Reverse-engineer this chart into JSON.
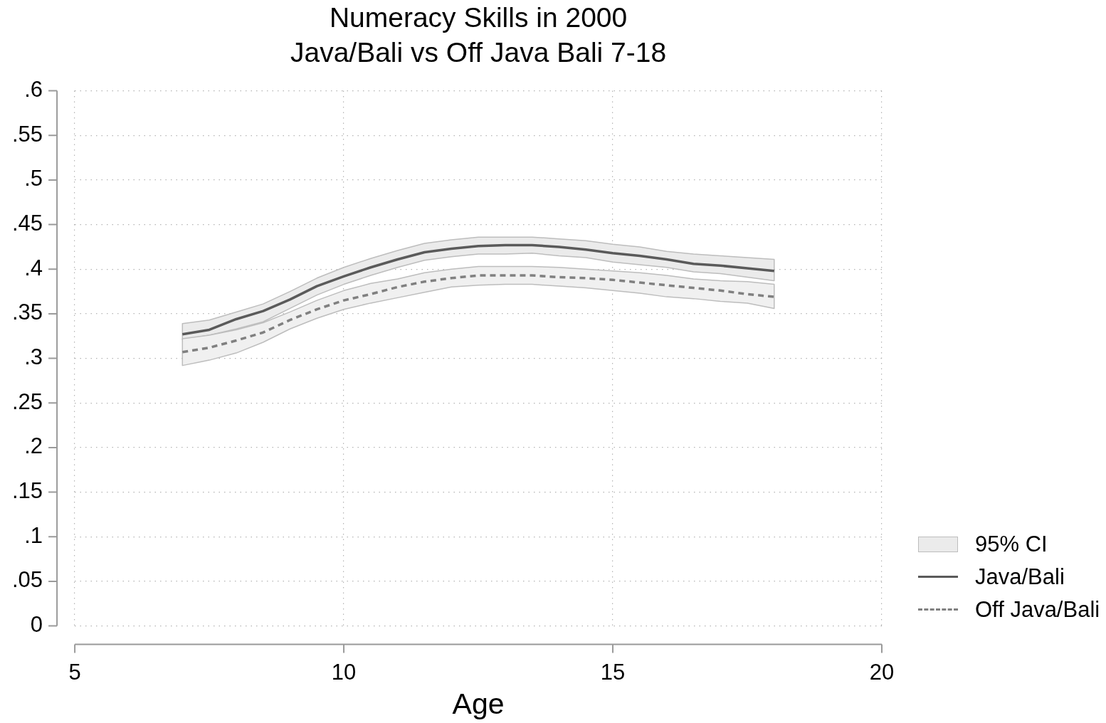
{
  "chart_data": {
    "type": "line",
    "title": "Numeracy Skills in 2000",
    "subtitle": "Java/Bali vs Off Java Bali 7-18",
    "xlabel": "Age",
    "annotations": [
      "95% CI"
    ],
    "x": [
      7,
      7.5,
      8,
      8.5,
      9,
      9.5,
      10,
      10.5,
      11,
      11.5,
      12,
      12.5,
      13,
      13.5,
      14,
      14.5,
      15,
      15.5,
      16,
      16.5,
      17,
      17.5,
      18
    ],
    "series": [
      {
        "name": "Java/Bali",
        "color": "#5a5a5a",
        "line_style": "solid",
        "values": [
          0.327,
          0.332,
          0.344,
          0.353,
          0.366,
          0.381,
          0.392,
          0.402,
          0.411,
          0.419,
          0.423,
          0.426,
          0.427,
          0.427,
          0.425,
          0.422,
          0.418,
          0.415,
          0.411,
          0.406,
          0.404,
          0.401,
          0.398
        ],
        "lower": [
          0.321,
          0.326,
          0.333,
          0.341,
          0.356,
          0.371,
          0.383,
          0.393,
          0.402,
          0.41,
          0.414,
          0.417,
          0.417,
          0.418,
          0.415,
          0.413,
          0.408,
          0.405,
          0.402,
          0.397,
          0.395,
          0.391,
          0.387
        ],
        "upper": [
          0.339,
          0.343,
          0.352,
          0.361,
          0.375,
          0.39,
          0.402,
          0.412,
          0.421,
          0.429,
          0.433,
          0.436,
          0.436,
          0.436,
          0.434,
          0.432,
          0.428,
          0.425,
          0.42,
          0.417,
          0.415,
          0.413,
          0.411
        ]
      },
      {
        "name": "Off Java/Bali",
        "color": "#808080",
        "line_style": "dashed",
        "values": [
          0.307,
          0.312,
          0.32,
          0.329,
          0.343,
          0.355,
          0.365,
          0.372,
          0.38,
          0.386,
          0.39,
          0.393,
          0.393,
          0.393,
          0.391,
          0.39,
          0.388,
          0.385,
          0.382,
          0.379,
          0.376,
          0.372,
          0.369
        ],
        "lower": [
          0.292,
          0.298,
          0.306,
          0.318,
          0.333,
          0.345,
          0.355,
          0.362,
          0.368,
          0.374,
          0.38,
          0.382,
          0.383,
          0.383,
          0.381,
          0.379,
          0.376,
          0.373,
          0.369,
          0.367,
          0.364,
          0.362,
          0.356
        ],
        "upper": [
          0.322,
          0.326,
          0.332,
          0.34,
          0.352,
          0.365,
          0.376,
          0.384,
          0.389,
          0.396,
          0.4,
          0.403,
          0.403,
          0.403,
          0.402,
          0.4,
          0.398,
          0.396,
          0.393,
          0.389,
          0.387,
          0.386,
          0.383
        ]
      }
    ],
    "xlim": [
      5,
      20
    ],
    "xticks": [
      5,
      10,
      15,
      20
    ],
    "ylim": [
      0,
      0.6
    ],
    "yticks": [
      0,
      {
        "value": 0.05,
        "label": ".05"
      },
      {
        "value": 0.1,
        "label": ".1"
      },
      {
        "value": 0.15,
        "label": ".15"
      },
      {
        "value": 0.2,
        "label": ".2"
      },
      {
        "value": 0.25,
        "label": ".25"
      },
      {
        "value": 0.3,
        "label": ".3"
      },
      {
        "value": 0.35,
        "label": ".35"
      },
      {
        "value": 0.4,
        "label": ".4"
      },
      {
        "value": 0.45,
        "label": ".45"
      },
      {
        "value": 0.5,
        "label": ".5"
      },
      {
        "value": 0.55,
        "label": ".55"
      },
      {
        "value": 0.6,
        "label": ".6"
      }
    ],
    "grid": true,
    "legend": "bottom right",
    "marker": "none"
  }
}
